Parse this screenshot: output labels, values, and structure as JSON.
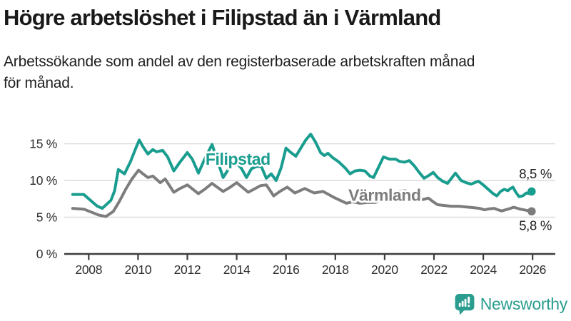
{
  "header": {
    "title": "Högre arbetslöshet i Filipstad än i Värmland",
    "subtitle_lines": [
      "Arbetssökande som andel av den registerbaserade arbetskraften månad",
      "för månad."
    ]
  },
  "branding": {
    "name": "Newsworthy",
    "icon": "newsworthy-speech-bubble-barchart-icon",
    "color": "#2a9d8f"
  },
  "colors": {
    "accent_teal": "#199d8f",
    "line_gray": "#7d7d7d",
    "grid": "#dcdcdc",
    "axis": "#3d3d3d",
    "text": "#2e2e2e"
  },
  "chart_data": {
    "type": "line",
    "title": "Högre arbetslöshet i Filipstad än i Värmland",
    "subtitle": "Arbetssökande som andel av den registerbaserade arbetskraften månad för månad.",
    "unit": "%",
    "grid": true,
    "legend": "inline-labels",
    "x_axis": {
      "tick_years": [
        2008,
        2010,
        2012,
        2014,
        2016,
        2018,
        2020,
        2022,
        2024,
        2026
      ],
      "range": [
        2007.0,
        2026.9
      ]
    },
    "y_axis": {
      "ticks": [
        0,
        5,
        10,
        15
      ],
      "tick_labels": [
        "0 %",
        "5 %",
        "10 %",
        "15 %"
      ],
      "range": [
        0,
        17.5
      ]
    },
    "series": [
      {
        "name": "Filipstad",
        "color": "#199d8f",
        "end_value": 8.5,
        "end_label": "8,5 %",
        "label_anchor": {
          "x_year": 2014.05,
          "y_value": 12.9
        },
        "points": [
          [
            2007.35,
            8.1
          ],
          [
            2007.8,
            8.1
          ],
          [
            2008.1,
            7.2
          ],
          [
            2008.35,
            6.5
          ],
          [
            2008.55,
            6.2
          ],
          [
            2008.9,
            7.3
          ],
          [
            2009.05,
            8.6
          ],
          [
            2009.2,
            11.5
          ],
          [
            2009.45,
            10.9
          ],
          [
            2009.7,
            12.6
          ],
          [
            2009.9,
            14.3
          ],
          [
            2010.05,
            15.5
          ],
          [
            2010.2,
            14.6
          ],
          [
            2010.4,
            13.6
          ],
          [
            2010.6,
            14.2
          ],
          [
            2010.75,
            13.9
          ],
          [
            2011.0,
            14.1
          ],
          [
            2011.2,
            13.2
          ],
          [
            2011.45,
            11.3
          ],
          [
            2011.7,
            12.5
          ],
          [
            2012.0,
            13.8
          ],
          [
            2012.2,
            12.9
          ],
          [
            2012.45,
            11.0
          ],
          [
            2012.7,
            12.9
          ],
          [
            2013.0,
            14.9
          ],
          [
            2013.25,
            12.4
          ],
          [
            2013.45,
            10.4
          ],
          [
            2013.7,
            11.7
          ],
          [
            2014.0,
            12.4
          ],
          [
            2014.2,
            11.6
          ],
          [
            2014.4,
            10.4
          ],
          [
            2014.6,
            11.6
          ],
          [
            2014.8,
            11.9
          ],
          [
            2015.0,
            11.9
          ],
          [
            2015.2,
            10.3
          ],
          [
            2015.4,
            10.9
          ],
          [
            2015.6,
            10.0
          ],
          [
            2015.8,
            11.7
          ],
          [
            2016.0,
            14.4
          ],
          [
            2016.2,
            13.8
          ],
          [
            2016.4,
            13.3
          ],
          [
            2016.6,
            14.4
          ],
          [
            2016.8,
            15.5
          ],
          [
            2017.0,
            16.3
          ],
          [
            2017.2,
            15.2
          ],
          [
            2017.4,
            13.8
          ],
          [
            2017.55,
            13.4
          ],
          [
            2017.7,
            13.7
          ],
          [
            2017.9,
            13.1
          ],
          [
            2018.15,
            12.5
          ],
          [
            2018.4,
            11.7
          ],
          [
            2018.6,
            10.9
          ],
          [
            2018.8,
            11.3
          ],
          [
            2019.0,
            11.4
          ],
          [
            2019.2,
            11.3
          ],
          [
            2019.4,
            10.6
          ],
          [
            2019.55,
            10.4
          ],
          [
            2019.75,
            11.8
          ],
          [
            2019.95,
            13.2
          ],
          [
            2020.2,
            12.9
          ],
          [
            2020.45,
            12.9
          ],
          [
            2020.6,
            12.6
          ],
          [
            2020.8,
            12.5
          ],
          [
            2021.0,
            12.7
          ],
          [
            2021.2,
            12.0
          ],
          [
            2021.4,
            11.1
          ],
          [
            2021.6,
            10.3
          ],
          [
            2021.8,
            10.7
          ],
          [
            2021.97,
            11.1
          ],
          [
            2022.15,
            10.4
          ],
          [
            2022.35,
            9.9
          ],
          [
            2022.55,
            9.6
          ],
          [
            2022.87,
            11.0
          ],
          [
            2023.1,
            10.0
          ],
          [
            2023.3,
            9.7
          ],
          [
            2023.5,
            9.5
          ],
          [
            2023.8,
            9.9
          ],
          [
            2024.0,
            9.4
          ],
          [
            2024.2,
            8.8
          ],
          [
            2024.4,
            8.2
          ],
          [
            2024.55,
            7.9
          ],
          [
            2024.7,
            8.5
          ],
          [
            2024.85,
            8.8
          ],
          [
            2025.0,
            8.6
          ],
          [
            2025.1,
            8.9
          ],
          [
            2025.2,
            9.1
          ],
          [
            2025.32,
            8.4
          ],
          [
            2025.45,
            7.8
          ],
          [
            2025.6,
            7.9
          ],
          [
            2025.75,
            8.3
          ],
          [
            2025.88,
            8.2
          ],
          [
            2025.96,
            8.5
          ]
        ]
      },
      {
        "name": "Värmland",
        "color": "#7d7d7d",
        "end_value": 5.8,
        "end_label": "5,8 %",
        "label_anchor": {
          "x_year": 2020.0,
          "y_value": 8.0
        },
        "points": [
          [
            2007.35,
            6.2
          ],
          [
            2007.8,
            6.1
          ],
          [
            2008.1,
            5.7
          ],
          [
            2008.4,
            5.3
          ],
          [
            2008.7,
            5.1
          ],
          [
            2009.0,
            5.8
          ],
          [
            2009.25,
            7.2
          ],
          [
            2009.5,
            8.8
          ],
          [
            2009.75,
            10.2
          ],
          [
            2010.02,
            11.4
          ],
          [
            2010.2,
            10.9
          ],
          [
            2010.4,
            10.4
          ],
          [
            2010.6,
            10.6
          ],
          [
            2010.9,
            9.7
          ],
          [
            2011.1,
            10.2
          ],
          [
            2011.45,
            8.4
          ],
          [
            2011.7,
            8.9
          ],
          [
            2012.0,
            9.4
          ],
          [
            2012.45,
            8.2
          ],
          [
            2012.7,
            8.8
          ],
          [
            2013.0,
            9.6
          ],
          [
            2013.45,
            8.5
          ],
          [
            2013.7,
            9.0
          ],
          [
            2014.0,
            9.7
          ],
          [
            2014.47,
            8.4
          ],
          [
            2014.97,
            9.3
          ],
          [
            2015.2,
            9.4
          ],
          [
            2015.5,
            7.9
          ],
          [
            2015.75,
            8.5
          ],
          [
            2016.05,
            9.1
          ],
          [
            2016.36,
            8.3
          ],
          [
            2016.76,
            8.9
          ],
          [
            2017.14,
            8.3
          ],
          [
            2017.5,
            8.5
          ],
          [
            2018.0,
            7.6
          ],
          [
            2018.45,
            6.9
          ],
          [
            2018.7,
            7.1
          ],
          [
            2019.0,
            6.9
          ],
          [
            2019.3,
            7.0
          ],
          [
            2019.6,
            7.0
          ],
          [
            2019.9,
            7.3
          ],
          [
            2020.2,
            8.0
          ],
          [
            2020.6,
            8.5
          ],
          [
            2020.85,
            8.6
          ],
          [
            2021.1,
            8.0
          ],
          [
            2021.3,
            7.6
          ],
          [
            2021.55,
            7.4
          ],
          [
            2021.77,
            7.6
          ],
          [
            2021.97,
            7.1
          ],
          [
            2022.15,
            6.7
          ],
          [
            2022.4,
            6.6
          ],
          [
            2022.7,
            6.5
          ],
          [
            2023.0,
            6.5
          ],
          [
            2023.3,
            6.4
          ],
          [
            2023.6,
            6.3
          ],
          [
            2023.85,
            6.2
          ],
          [
            2024.05,
            6.0
          ],
          [
            2024.25,
            6.15
          ],
          [
            2024.45,
            6.2
          ],
          [
            2024.6,
            6.0
          ],
          [
            2024.75,
            5.85
          ],
          [
            2024.95,
            6.05
          ],
          [
            2025.1,
            6.2
          ],
          [
            2025.22,
            6.35
          ],
          [
            2025.35,
            6.25
          ],
          [
            2025.5,
            6.1
          ],
          [
            2025.65,
            6.0
          ],
          [
            2025.8,
            5.9
          ],
          [
            2025.96,
            5.8
          ]
        ]
      }
    ]
  }
}
